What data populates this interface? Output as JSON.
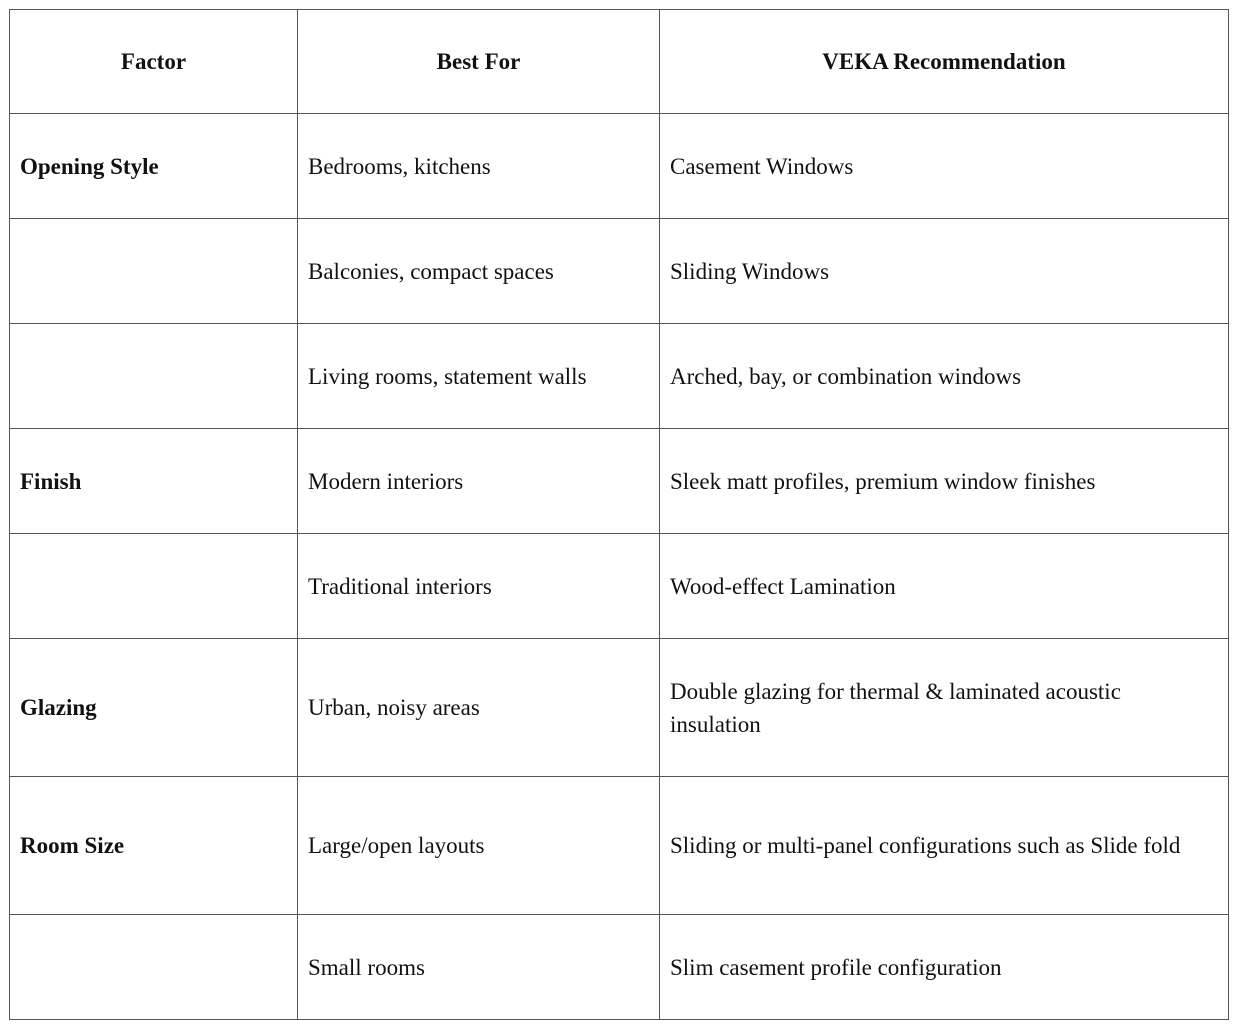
{
  "table": {
    "header": [
      "Factor",
      "Best For",
      "VEKA Recommendation"
    ],
    "rows": [
      [
        "Opening Style",
        "Bedrooms, kitchens",
        "Casement Windows"
      ],
      [
        null,
        "Balconies, compact spaces",
        "Sliding Windows"
      ],
      [
        null,
        "Living rooms, statement walls",
        "Arched, bay, or combination windows"
      ],
      [
        "Finish",
        "Modern interiors",
        "Sleek matt profiles, premium window finishes"
      ],
      [
        null,
        "Traditional interiors",
        "Wood-effect Lamination"
      ],
      [
        "Glazing",
        "Urban, noisy areas",
        "Double glazing for thermal & laminated acoustic insulation"
      ],
      [
        "Room Size",
        "Large/open layouts",
        "Sliding or multi-panel configurations such as Slide fold"
      ],
      [
        null,
        "Small rooms",
        "Slim casement profile configuration"
      ]
    ]
  }
}
